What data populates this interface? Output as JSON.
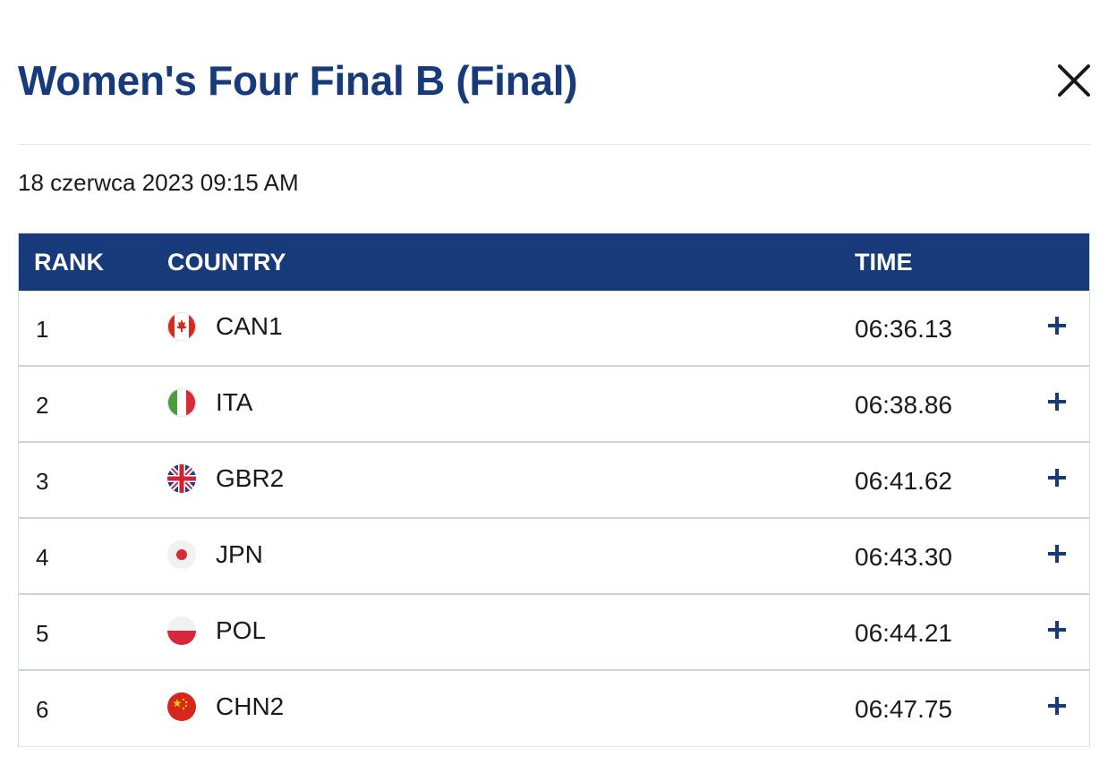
{
  "header": {
    "title": "Women's Four Final B (Final)",
    "date": "18 czerwca 2023 09:15 AM"
  },
  "table": {
    "columns": {
      "rank": "RANK",
      "country": "COUNTRY",
      "time": "TIME"
    },
    "rows": [
      {
        "rank": "1",
        "country": "CAN1",
        "time": "06:36.13",
        "flag": "canada-flag-icon"
      },
      {
        "rank": "2",
        "country": "ITA",
        "time": "06:38.86",
        "flag": "italy-flag-icon"
      },
      {
        "rank": "3",
        "country": "GBR2",
        "time": "06:41.62",
        "flag": "uk-flag-icon"
      },
      {
        "rank": "4",
        "country": "JPN",
        "time": "06:43.30",
        "flag": "japan-flag-icon"
      },
      {
        "rank": "5",
        "country": "POL",
        "time": "06:44.21",
        "flag": "poland-flag-icon"
      },
      {
        "rank": "6",
        "country": "CHN2",
        "time": "06:47.75",
        "flag": "china-flag-icon"
      }
    ]
  },
  "colors": {
    "brand_navy": "#173a7a",
    "text": "#1a1a1a",
    "border": "#cdd3de"
  },
  "icons": {
    "close": "close-icon",
    "expand": "plus-icon"
  }
}
